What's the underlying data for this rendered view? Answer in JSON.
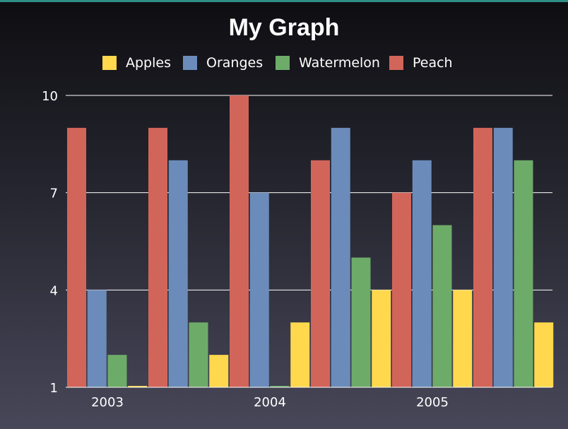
{
  "chart_data": {
    "type": "bar",
    "title": "My Graph",
    "xlabel": "",
    "ylabel": "",
    "ylim": [
      1,
      10
    ],
    "yticks": [
      1,
      4,
      7,
      10
    ],
    "grid": true,
    "legend_position": "top",
    "categories": [
      "2003",
      "",
      "",
      "2004",
      "",
      "",
      "2005",
      ""
    ],
    "x_tick_labels": [
      "2003",
      "2004",
      "2005"
    ],
    "series": [
      {
        "name": "Peach",
        "color": "#d2655a",
        "values": [
          9,
          9,
          10,
          8,
          7,
          9,
          null,
          null
        ]
      },
      {
        "name": "Oranges",
        "color": "#6b8cba",
        "values": [
          4,
          8,
          7,
          9,
          8,
          9,
          null,
          null
        ]
      },
      {
        "name": "Watermelon",
        "color": "#6dab69",
        "values": [
          2,
          3,
          1,
          5,
          6,
          8,
          null,
          null
        ]
      },
      {
        "name": "Apples",
        "color": "#ffd84d",
        "values": [
          1,
          2,
          3,
          4,
          4,
          3,
          null,
          null
        ]
      }
    ],
    "legend_order": [
      "Apples",
      "Oranges",
      "Watermelon",
      "Peach"
    ],
    "bar_sequence": [
      {
        "series": "Peach",
        "value": 9
      },
      {
        "series": "Oranges",
        "value": 4
      },
      {
        "series": "Watermelon",
        "value": 2
      },
      {
        "series": "Apples",
        "value": 1
      },
      {
        "series": "Peach",
        "value": 9
      },
      {
        "series": "Oranges",
        "value": 8
      },
      {
        "series": "Watermelon",
        "value": 3
      },
      {
        "series": "Apples",
        "value": 2
      },
      {
        "series": "Peach",
        "value": 10
      },
      {
        "series": "Oranges",
        "value": 7
      },
      {
        "series": "Watermelon",
        "value": 1
      },
      {
        "series": "Apples",
        "value": 3
      },
      {
        "series": "Peach",
        "value": 8
      },
      {
        "series": "Oranges",
        "value": 9
      },
      {
        "series": "Watermelon",
        "value": 5
      },
      {
        "series": "Apples",
        "value": 4
      },
      {
        "series": "Peach",
        "value": 7
      },
      {
        "series": "Oranges",
        "value": 8
      },
      {
        "series": "Watermelon",
        "value": 6
      },
      {
        "series": "Apples",
        "value": 4
      },
      {
        "series": "Peach",
        "value": 9
      },
      {
        "series": "Oranges",
        "value": 9
      },
      {
        "series": "Watermelon",
        "value": 8
      },
      {
        "series": "Apples",
        "value": 3
      }
    ]
  }
}
